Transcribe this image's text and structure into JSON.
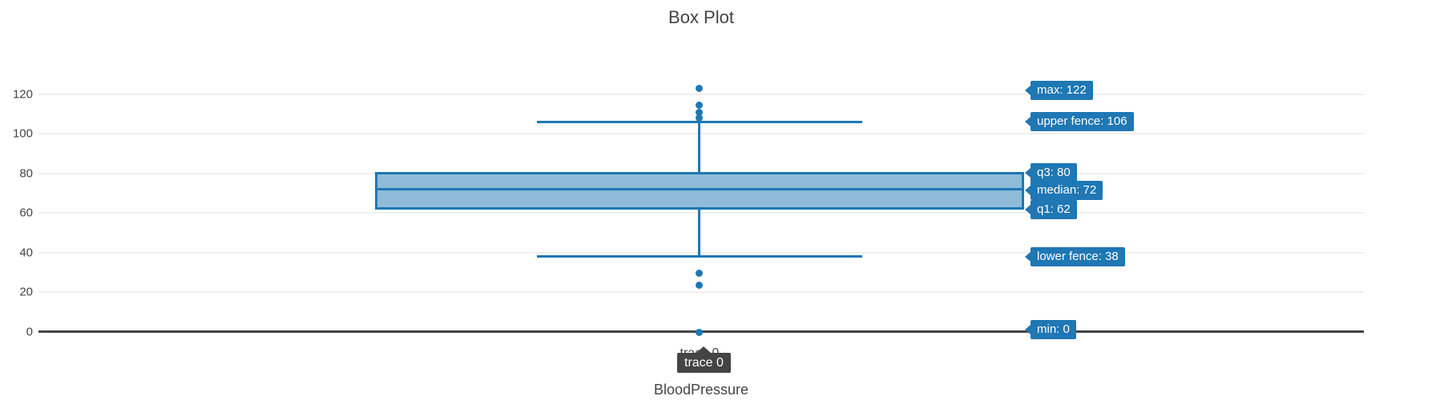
{
  "title": "Box Plot",
  "y_axis": {
    "ticks": [
      "120",
      "100",
      "80",
      "60",
      "40",
      "20",
      "0"
    ]
  },
  "x_axis": {
    "tick_label": "trace 0",
    "title": "BloodPressure"
  },
  "axis_tooltip": {
    "text": "trace 0"
  },
  "hover_labels": {
    "max": "max: 122",
    "upper_fence": "upper fence: 106",
    "q3": "q3: 80",
    "median": "median: 72",
    "q1": "q1: 62",
    "lower_fence": "lower fence: 38",
    "min": "min: 0"
  },
  "chart_data": {
    "type": "box",
    "title": "Box Plot",
    "xlabel": "BloodPressure",
    "ylabel": "",
    "series_name": "trace 0",
    "orientation": "vertical",
    "stats": {
      "min": 0,
      "q1": 62,
      "median": 72,
      "q3": 80,
      "max": 122,
      "lower_fence": 38,
      "upper_fence": 106
    },
    "outliers_above": [
      122,
      114,
      110,
      108
    ],
    "outliers_below": [
      30,
      24,
      0
    ],
    "yticks": [
      0,
      20,
      40,
      60,
      80,
      100,
      120
    ],
    "ylim": [
      0,
      130
    ],
    "grid": true,
    "legend": false
  },
  "colors": {
    "trace": "#1f77b4",
    "box_fill": "rgba(31,119,180,0.5)",
    "grid": "#efefef",
    "zeroline": "#444444",
    "text": "#444444",
    "hover_bg": "#1f77b4",
    "hover_text": "#ffffff",
    "tooltip_bg": "#444444",
    "tooltip_text": "#ffffff",
    "background": "#ffffff"
  }
}
